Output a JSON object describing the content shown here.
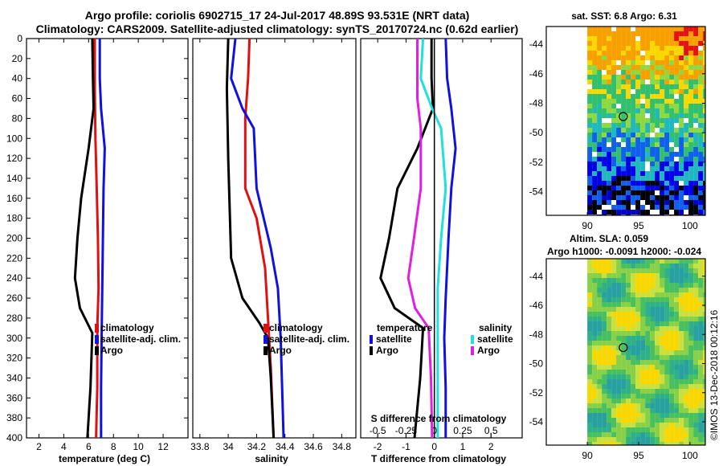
{
  "title_line1": "Argo profile: coriolis 6902715_17 24-Jul-2017 48.89S 93.531E (NRT data)",
  "title_line2": "Climatology: CARS2009. Satellite-adjusted climatology: synTS_20170724.nc (0.62d earlier)",
  "side_stamp": "©IMOS 13-Dec-2018 00:12:16",
  "colors": {
    "argo": "#000000",
    "climatology": "#e01010",
    "satellite": "#1010e0",
    "sat_salinity": "#20e0e0",
    "argo_salinity_diff": "#e020e0"
  },
  "chart_data": [
    {
      "type": "line",
      "name": "temperature-panel",
      "xlabel": "temperature (deg C)",
      "xlim": [
        1,
        14
      ],
      "xticks": [
        2,
        4,
        6,
        8,
        10,
        12
      ],
      "ylim": [
        0,
        400
      ],
      "yticks": [
        0,
        20,
        40,
        60,
        80,
        100,
        120,
        140,
        160,
        180,
        200,
        220,
        240,
        260,
        280,
        300,
        320,
        340,
        360,
        380,
        400
      ],
      "legend": [
        "climatology",
        "satellite-adj. clim.",
        "Argo"
      ],
      "series": [
        {
          "name": "climatology",
          "color": "#e01010",
          "points": [
            [
              6.5,
              0
            ],
            [
              6.5,
              50
            ],
            [
              6.55,
              100
            ],
            [
              6.65,
              150
            ],
            [
              6.75,
              200
            ],
            [
              6.8,
              250
            ],
            [
              6.7,
              290
            ],
            [
              6.7,
              350
            ],
            [
              6.6,
              400
            ]
          ]
        },
        {
          "name": "satellite-adj. clim.",
          "color": "#1010e0",
          "points": [
            [
              6.9,
              0
            ],
            [
              6.9,
              40
            ],
            [
              7.0,
              70
            ],
            [
              7.3,
              110
            ],
            [
              7.2,
              150
            ],
            [
              7.15,
              200
            ],
            [
              7.1,
              250
            ],
            [
              7.05,
              300
            ],
            [
              7.0,
              350
            ],
            [
              7.0,
              400
            ]
          ]
        },
        {
          "name": "Argo",
          "color": "#000000",
          "points": [
            [
              6.3,
              0
            ],
            [
              6.35,
              40
            ],
            [
              6.4,
              70
            ],
            [
              6.0,
              110
            ],
            [
              5.4,
              160
            ],
            [
              5.1,
              200
            ],
            [
              4.9,
              240
            ],
            [
              5.3,
              270
            ],
            [
              6.3,
              295
            ],
            [
              6.15,
              350
            ],
            [
              5.9,
              400
            ]
          ]
        }
      ]
    },
    {
      "type": "line",
      "name": "salinity-panel",
      "xlabel": "salinity",
      "xlim": [
        33.75,
        34.9
      ],
      "xticks": [
        33.8,
        34.0,
        34.2,
        34.4,
        34.6,
        34.8
      ],
      "xticklabels": [
        "33.8",
        "34",
        "34.2",
        "34.4",
        "34.6",
        "34.8"
      ],
      "ylim": [
        0,
        400
      ],
      "legend": [
        "climatology",
        "satellite-adj. clim.",
        "Argo"
      ],
      "series": [
        {
          "name": "climatology",
          "color": "#e01010",
          "points": [
            [
              34.15,
              0
            ],
            [
              34.14,
              40
            ],
            [
              34.12,
              80
            ],
            [
              34.12,
              150
            ],
            [
              34.2,
              180
            ],
            [
              34.26,
              230
            ],
            [
              34.28,
              280
            ],
            [
              34.3,
              330
            ],
            [
              34.32,
              400
            ]
          ]
        },
        {
          "name": "satellite-adj. clim.",
          "color": "#1010e0",
          "points": [
            [
              34.05,
              0
            ],
            [
              34.02,
              40
            ],
            [
              34.1,
              70
            ],
            [
              34.18,
              90
            ],
            [
              34.2,
              150
            ],
            [
              34.3,
              210
            ],
            [
              34.35,
              250
            ],
            [
              34.37,
              300
            ],
            [
              34.39,
              400
            ]
          ]
        },
        {
          "name": "Argo",
          "color": "#000000",
          "points": [
            [
              34.0,
              0
            ],
            [
              33.99,
              50
            ],
            [
              34.0,
              120
            ],
            [
              34.02,
              220
            ],
            [
              34.1,
              260
            ],
            [
              34.22,
              285
            ],
            [
              34.28,
              300
            ],
            [
              34.3,
              340
            ],
            [
              34.32,
              400
            ]
          ]
        }
      ]
    },
    {
      "type": "line",
      "name": "difference-panel",
      "xlabel": "T difference from climatology",
      "xlim": [
        -2.6,
        3.1
      ],
      "xticks": [
        -2,
        -1,
        0,
        1,
        2
      ],
      "secondary_xlabel": "S difference from climatology",
      "secondary_xticks": [
        -0.5,
        -0.25,
        0,
        0.25,
        0.5
      ],
      "secondary_xticklabels": [
        "-0.5",
        "-0.25",
        "0",
        "0.25",
        "0.5"
      ],
      "secondary_xlim": [
        -0.65,
        0.775
      ],
      "ylim": [
        0,
        400
      ],
      "legend_temperature_heading": "temperature",
      "legend_salinity_heading": "salinity",
      "legend_temperature": [
        "satellite",
        "Argo"
      ],
      "legend_salinity": [
        "satellite",
        "Argo"
      ],
      "series": [
        {
          "name": "T satellite",
          "color": "#1010e0",
          "axis": "T",
          "points": [
            [
              0.4,
              0
            ],
            [
              0.45,
              40
            ],
            [
              0.6,
              70
            ],
            [
              0.75,
              110
            ],
            [
              0.6,
              150
            ],
            [
              0.5,
              200
            ],
            [
              0.4,
              260
            ],
            [
              0.35,
              300
            ],
            [
              0.4,
              350
            ],
            [
              0.4,
              400
            ]
          ]
        },
        {
          "name": "T Argo",
          "color": "#000000",
          "axis": "T",
          "points": [
            [
              -0.1,
              0
            ],
            [
              -0.1,
              40
            ],
            [
              -0.05,
              70
            ],
            [
              -0.6,
              110
            ],
            [
              -1.3,
              150
            ],
            [
              -1.6,
              200
            ],
            [
              -1.9,
              240
            ],
            [
              -1.4,
              270
            ],
            [
              -0.4,
              290
            ],
            [
              -0.5,
              340
            ],
            [
              -0.7,
              400
            ]
          ]
        },
        {
          "name": "S satellite",
          "color": "#20e0e0",
          "axis": "S",
          "points": [
            [
              -0.1,
              0
            ],
            [
              -0.12,
              40
            ],
            [
              -0.02,
              70
            ],
            [
              0.06,
              90
            ],
            [
              0.1,
              150
            ],
            [
              0.06,
              200
            ],
            [
              0.03,
              250
            ],
            [
              0.03,
              300
            ],
            [
              0.03,
              400
            ]
          ]
        },
        {
          "name": "S Argo",
          "color": "#e020e0",
          "axis": "S",
          "points": [
            [
              -0.15,
              0
            ],
            [
              -0.15,
              60
            ],
            [
              -0.12,
              90
            ],
            [
              -0.12,
              150
            ],
            [
              -0.18,
              200
            ],
            [
              -0.23,
              240
            ],
            [
              -0.17,
              270
            ],
            [
              -0.05,
              290
            ],
            [
              -0.03,
              340
            ],
            [
              -0.02,
              400
            ]
          ]
        }
      ]
    },
    {
      "type": "heatmap",
      "name": "sst-map",
      "title": "sat. SST: 6.8 Argo: 6.31",
      "xticks": [
        90,
        95,
        100
      ],
      "xlim": [
        86,
        101.5
      ],
      "yticks": [
        -44,
        -46,
        -48,
        -50,
        -52,
        -54
      ],
      "ylim": [
        -55.6,
        -42.8
      ],
      "marker": [
        93.5,
        -48.9
      ]
    },
    {
      "type": "heatmap",
      "name": "sla-map",
      "title": "Altim. SLA: 0.059",
      "subtitle": "Argo h1000: -0.0091 h2000: -0.024",
      "xticks": [
        90,
        95,
        100
      ],
      "xlim": [
        86,
        101.5
      ],
      "yticks": [
        -44,
        -46,
        -48,
        -50,
        -52,
        -54
      ],
      "ylim": [
        -55.6,
        -42.8
      ],
      "marker": [
        93.5,
        -48.9
      ]
    }
  ]
}
